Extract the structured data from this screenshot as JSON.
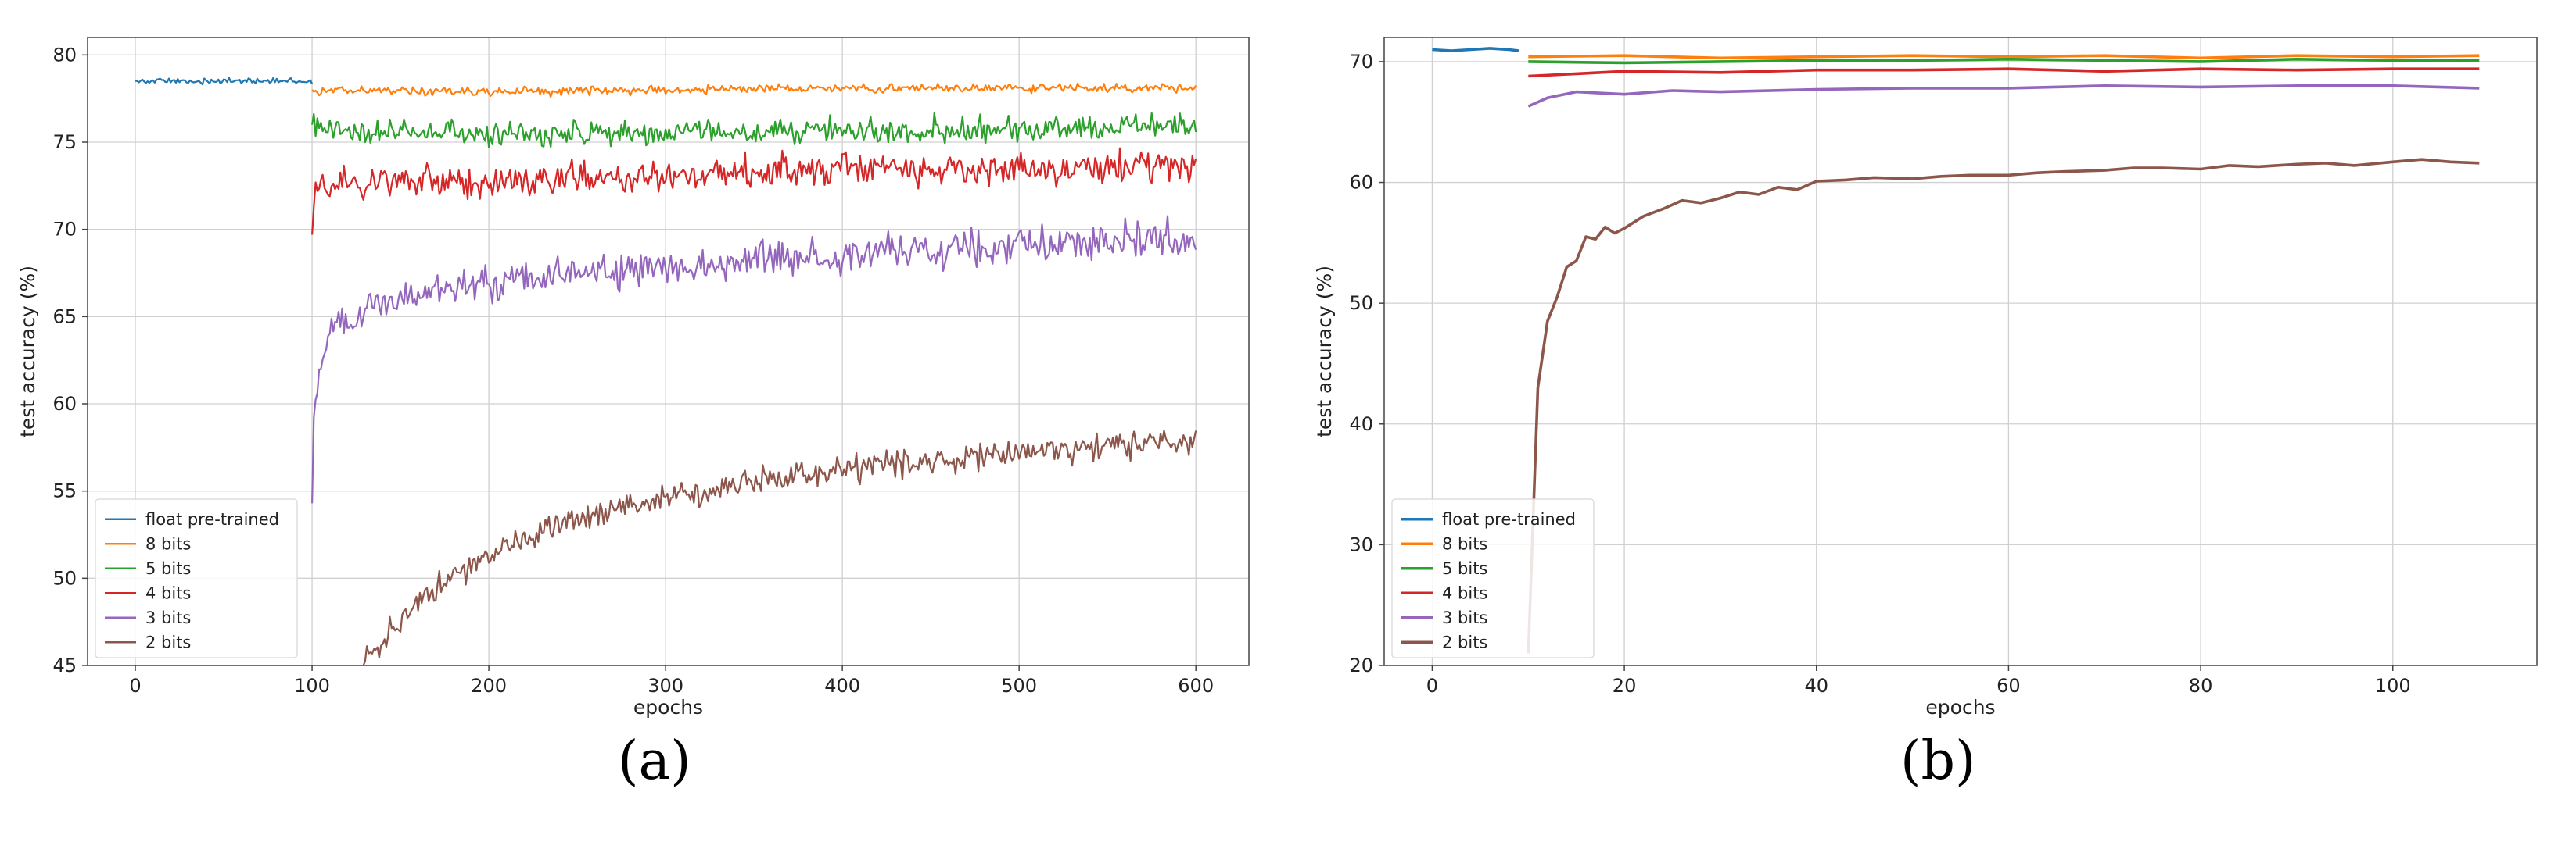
{
  "chart_data": [
    {
      "type": "line",
      "panel": "a",
      "caption": "(a)",
      "xlabel": "epochs",
      "ylabel": "test accuracy (%)",
      "xlim": [
        -27,
        630
      ],
      "ylim": [
        45,
        81
      ],
      "xticks": [
        0,
        100,
        200,
        300,
        400,
        500,
        600
      ],
      "yticks": [
        45,
        50,
        55,
        60,
        65,
        70,
        75,
        80
      ],
      "grid": true,
      "legend_position": "lower-left",
      "series": [
        {
          "name": "float pre-trained",
          "color": "#1f77b4",
          "x": [
            0,
            100
          ],
          "level": [
            78.5,
            78.5
          ],
          "noise": 0.08
        },
        {
          "name": "8 bits",
          "color": "#ff7f0e",
          "x": [
            100,
            200,
            300,
            400,
            500,
            600
          ],
          "level": [
            78.0,
            77.9,
            78.0,
            78.1,
            78.1,
            78.1
          ],
          "noise": 0.12
        },
        {
          "name": "5 bits",
          "color": "#2ca02c",
          "x": [
            100,
            120,
            200,
            300,
            400,
            500,
            600
          ],
          "level": [
            76.0,
            75.6,
            75.4,
            75.5,
            75.7,
            75.8,
            75.9
          ],
          "noise": 0.35
        },
        {
          "name": "4 bits",
          "color": "#d62728",
          "x": [
            100,
            102,
            110,
            150,
            200,
            300,
            400,
            500,
            600
          ],
          "level": [
            69.7,
            72.3,
            72.5,
            72.7,
            72.8,
            73.1,
            73.4,
            73.5,
            73.6
          ],
          "noise": 0.45
        },
        {
          "name": "3 bits",
          "color": "#9467bd",
          "x": [
            100,
            101,
            103,
            110,
            130,
            170,
            250,
            350,
            450,
            550,
            600
          ],
          "level": [
            54.3,
            59.5,
            61.5,
            64.0,
            65.5,
            66.5,
            67.4,
            68.3,
            68.8,
            69.3,
            69.4
          ],
          "noise": 0.5
        },
        {
          "name": "2 bits",
          "color": "#8c564b",
          "x": [
            129,
            140,
            160,
            190,
            230,
            280,
            350,
            420,
            500,
            560,
            600
          ],
          "level": [
            45.0,
            46.5,
            48.8,
            50.9,
            52.8,
            54.2,
            55.5,
            56.5,
            57.1,
            57.7,
            58.0
          ],
          "noise": 0.4
        }
      ]
    },
    {
      "type": "line",
      "panel": "b",
      "caption": "(b)",
      "xlabel": "epochs",
      "ylabel": "test accuracy (%)",
      "xlim": [
        -5,
        115
      ],
      "ylim": [
        20,
        72
      ],
      "xticks": [
        0,
        20,
        40,
        60,
        80,
        100
      ],
      "yticks": [
        20,
        30,
        40,
        50,
        60,
        70
      ],
      "grid": true,
      "legend_position": "lower-left",
      "series": [
        {
          "name": "float pre-trained",
          "color": "#1f77b4",
          "x": [
            0,
            2,
            4,
            6,
            8,
            9
          ],
          "values": [
            71.0,
            70.9,
            71.0,
            71.1,
            71.0,
            70.9
          ]
        },
        {
          "name": "8 bits",
          "color": "#ff7f0e",
          "x": [
            10,
            20,
            30,
            40,
            50,
            60,
            70,
            80,
            90,
            100,
            109
          ],
          "values": [
            70.4,
            70.5,
            70.3,
            70.4,
            70.5,
            70.4,
            70.5,
            70.3,
            70.5,
            70.4,
            70.5
          ]
        },
        {
          "name": "5 bits",
          "color": "#2ca02c",
          "x": [
            10,
            20,
            30,
            40,
            50,
            60,
            70,
            80,
            90,
            100,
            109
          ],
          "values": [
            70.0,
            69.9,
            70.0,
            70.1,
            70.1,
            70.2,
            70.1,
            70.0,
            70.2,
            70.1,
            70.1
          ]
        },
        {
          "name": "4 bits",
          "color": "#d62728",
          "x": [
            10,
            15,
            20,
            30,
            40,
            50,
            60,
            70,
            80,
            90,
            100,
            109
          ],
          "values": [
            68.8,
            69.0,
            69.2,
            69.1,
            69.3,
            69.3,
            69.4,
            69.2,
            69.4,
            69.3,
            69.4,
            69.4
          ]
        },
        {
          "name": "3 bits",
          "color": "#9467bd",
          "x": [
            10,
            12,
            15,
            20,
            25,
            30,
            40,
            50,
            60,
            70,
            80,
            90,
            100,
            109
          ],
          "values": [
            66.3,
            67.0,
            67.5,
            67.3,
            67.6,
            67.5,
            67.7,
            67.8,
            67.8,
            68.0,
            67.9,
            68.0,
            68.0,
            67.8
          ]
        },
        {
          "name": "2 bits",
          "color": "#8c564b",
          "x": [
            10,
            11,
            12,
            13,
            14,
            15,
            16,
            17,
            18,
            19,
            20,
            22,
            24,
            26,
            28,
            30,
            32,
            34,
            36,
            38,
            40,
            43,
            46,
            50,
            53,
            56,
            60,
            63,
            66,
            70,
            73,
            76,
            80,
            83,
            86,
            90,
            93,
            96,
            100,
            103,
            106,
            109
          ],
          "values": [
            21.0,
            43.0,
            48.5,
            50.5,
            53.0,
            53.5,
            55.5,
            55.3,
            56.3,
            55.8,
            56.2,
            57.2,
            57.8,
            58.5,
            58.3,
            58.7,
            59.2,
            59.0,
            59.6,
            59.4,
            60.1,
            60.2,
            60.4,
            60.3,
            60.5,
            60.6,
            60.6,
            60.8,
            60.9,
            61.0,
            61.2,
            61.2,
            61.1,
            61.4,
            61.3,
            61.5,
            61.6,
            61.4,
            61.7,
            61.9,
            61.7,
            61.6
          ]
        }
      ]
    }
  ]
}
